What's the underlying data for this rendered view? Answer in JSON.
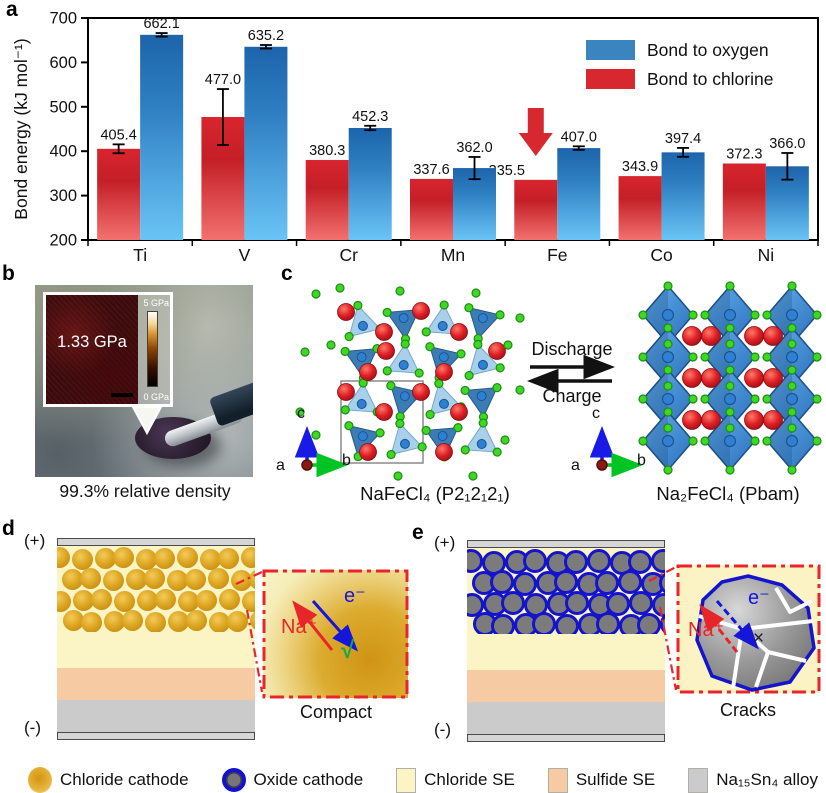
{
  "panel_labels": {
    "a": "a",
    "b": "b",
    "c": "c",
    "d": "d",
    "e": "e"
  },
  "chart_data": {
    "type": "bar",
    "title": "",
    "ylabel": "Bond energy (kJ mol⁻¹)",
    "ylim": [
      200,
      700
    ],
    "yticks": [
      200,
      300,
      400,
      500,
      600,
      700
    ],
    "grid": false,
    "legend_position": "top-right",
    "categories": [
      "Ti",
      "V",
      "Cr",
      "Mn",
      "Fe",
      "Co",
      "Ni"
    ],
    "series": [
      {
        "name": "Bond to chlorine",
        "color_top": "#d8252e",
        "color_mid": "#c41f27",
        "color_bottom": "#f3716f",
        "values": [
          405.4,
          477.0,
          380.3,
          337.6,
          335.5,
          343.9,
          372.3
        ],
        "errors": [
          10,
          63,
          0,
          0,
          0,
          0,
          0
        ]
      },
      {
        "name": "Bond to oxygen",
        "color_top": "#1d64ab",
        "color_mid": "#2e7fc2",
        "color_bottom": "#6ac4f5",
        "values": [
          662.1,
          635.2,
          452.3,
          362.0,
          407.0,
          397.4,
          366.0
        ],
        "errors": [
          4,
          4,
          5,
          25,
          4,
          10,
          30
        ]
      }
    ],
    "legend": [
      {
        "label": "Bond to oxygen",
        "color": "#3a84c0"
      },
      {
        "label": "Bond to chlorine",
        "color": "#d7282f"
      }
    ],
    "annotation": {
      "type": "down-arrow",
      "color": "#d7282f",
      "category": "Fe",
      "series": "Bond to chlorine"
    }
  },
  "panel_b": {
    "inset_value": "1.33 GPa",
    "colorbar_max": "5 GPa",
    "colorbar_min": "0 GPa",
    "caption": "99.3% relative density"
  },
  "panel_c": {
    "discharge_label": "Discharge",
    "charge_label": "Charge",
    "left_formula": "NaFeCl₄ (P2₁2₁2₁)",
    "right_formula": "Na₂FeCl₄ (Pbam)",
    "axis_a": "a",
    "axis_b": "b",
    "axis_c": "c"
  },
  "panel_d": {
    "positive": "(+)",
    "negative": "(-)",
    "na_ion": "Na⁺",
    "electron": "e⁻",
    "check_mark": "√",
    "caption": "Compact"
  },
  "panel_e": {
    "positive": "(+)",
    "negative": "(-)",
    "na_ion": "Na⁺",
    "electron": "e⁻",
    "cross_mark": "×",
    "caption": "Cracks"
  },
  "bottom_legend": {
    "items": [
      {
        "label": "Chloride cathode",
        "swatch": "gold-circle",
        "color": "#d79a18"
      },
      {
        "label": "Oxide cathode",
        "swatch": "gray-circle-blue-ring",
        "color": "#7a7a7a",
        "ring": "#1313cf"
      },
      {
        "label": "Chloride SE",
        "swatch": "square",
        "color": "#fbf4c4"
      },
      {
        "label": "Sulfide SE",
        "swatch": "square",
        "color": "#f6caa2"
      },
      {
        "label": "Na₁₅Sn₄ alloy",
        "swatch": "square",
        "color": "#cbcbcb"
      }
    ]
  }
}
